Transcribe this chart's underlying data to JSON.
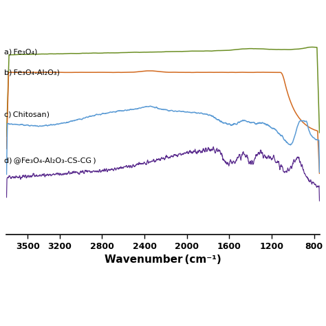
{
  "xlabel": "Wavenumber (cm⁻¹)",
  "xmin": 800,
  "xmax": 3700,
  "background_color": "#ffffff",
  "line_colors": {
    "fe3o4": "#6b8e23",
    "al2o3": "#d2691e",
    "chitosan": "#5b9bd5",
    "composite": "#5b2d8e"
  },
  "labels": {
    "fe3o4": "a) Fe₃O₄)",
    "al2o3": "b) Fe₃O₄-Al₂O₃)",
    "chitosan": "c) Chitosan)",
    "composite": "d) @Fe₃O₄-Al₂O₃-CS-CG )"
  },
  "xticks": [
    3500,
    3200,
    2800,
    2400,
    2000,
    1600,
    1200,
    800
  ],
  "yticks_visible": false
}
